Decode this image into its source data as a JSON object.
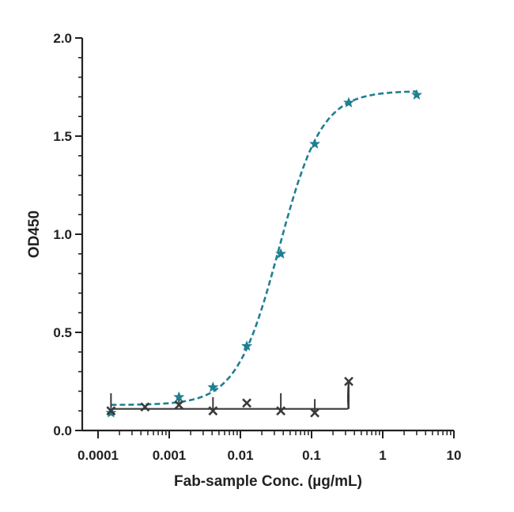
{
  "chart_data": {
    "type": "scatter",
    "title": "",
    "xlabel": "Fab-sample Conc. (µg/mL)",
    "ylabel": "OD450",
    "x_scale": "log",
    "xlim": [
      0.0001,
      10
    ],
    "ylim": [
      0,
      2
    ],
    "x_ticks": [
      0.0001,
      0.001,
      0.01,
      0.1,
      1,
      10
    ],
    "x_tick_labels": [
      "0.0001",
      "0.001",
      "0.01",
      "0.1",
      "1",
      "10"
    ],
    "y_ticks": [
      0,
      0.5,
      1,
      1.5,
      2
    ],
    "y_tick_labels": [
      "0.0",
      "0.5",
      "1.0",
      "1.5",
      "2.0"
    ],
    "grid": false,
    "legend": "none",
    "series": [
      {
        "marker": "star",
        "color": "#1f7f92",
        "line_style": "dashed",
        "points": [
          {
            "x": 0.000152,
            "y": 0.09
          },
          {
            "x": 0.00137,
            "y": 0.17
          },
          {
            "x": 0.00412,
            "y": 0.22
          },
          {
            "x": 0.0123,
            "y": 0.43
          },
          {
            "x": 0.037,
            "y": 0.9
          },
          {
            "x": 0.111,
            "y": 1.46
          },
          {
            "x": 0.333,
            "y": 1.67
          },
          {
            "x": 3.0,
            "y": 1.71
          }
        ],
        "fit": {
          "bottom": 0.13,
          "top": 1.73,
          "ec50": 0.035,
          "hill": 1.45
        }
      },
      {
        "marker": "x",
        "color": "#3a3a3a",
        "line_style": "solid",
        "points": [
          {
            "x": 0.000152,
            "y": 0.1,
            "err_up": 0.19
          },
          {
            "x": 0.000457,
            "y": 0.12
          },
          {
            "x": 0.00137,
            "y": 0.13,
            "err_up": 0.19
          },
          {
            "x": 0.00412,
            "y": 0.1,
            "err_up": 0.17
          },
          {
            "x": 0.0123,
            "y": 0.14
          },
          {
            "x": 0.037,
            "y": 0.1,
            "err_up": 0.19
          },
          {
            "x": 0.111,
            "y": 0.09,
            "err_up": 0.16
          },
          {
            "x": 0.333,
            "y": 0.25,
            "err_down": 0.11
          }
        ],
        "fit": {
          "bottom": 0.11,
          "rise_start": 0.31,
          "end_y": 0.25
        }
      }
    ]
  }
}
